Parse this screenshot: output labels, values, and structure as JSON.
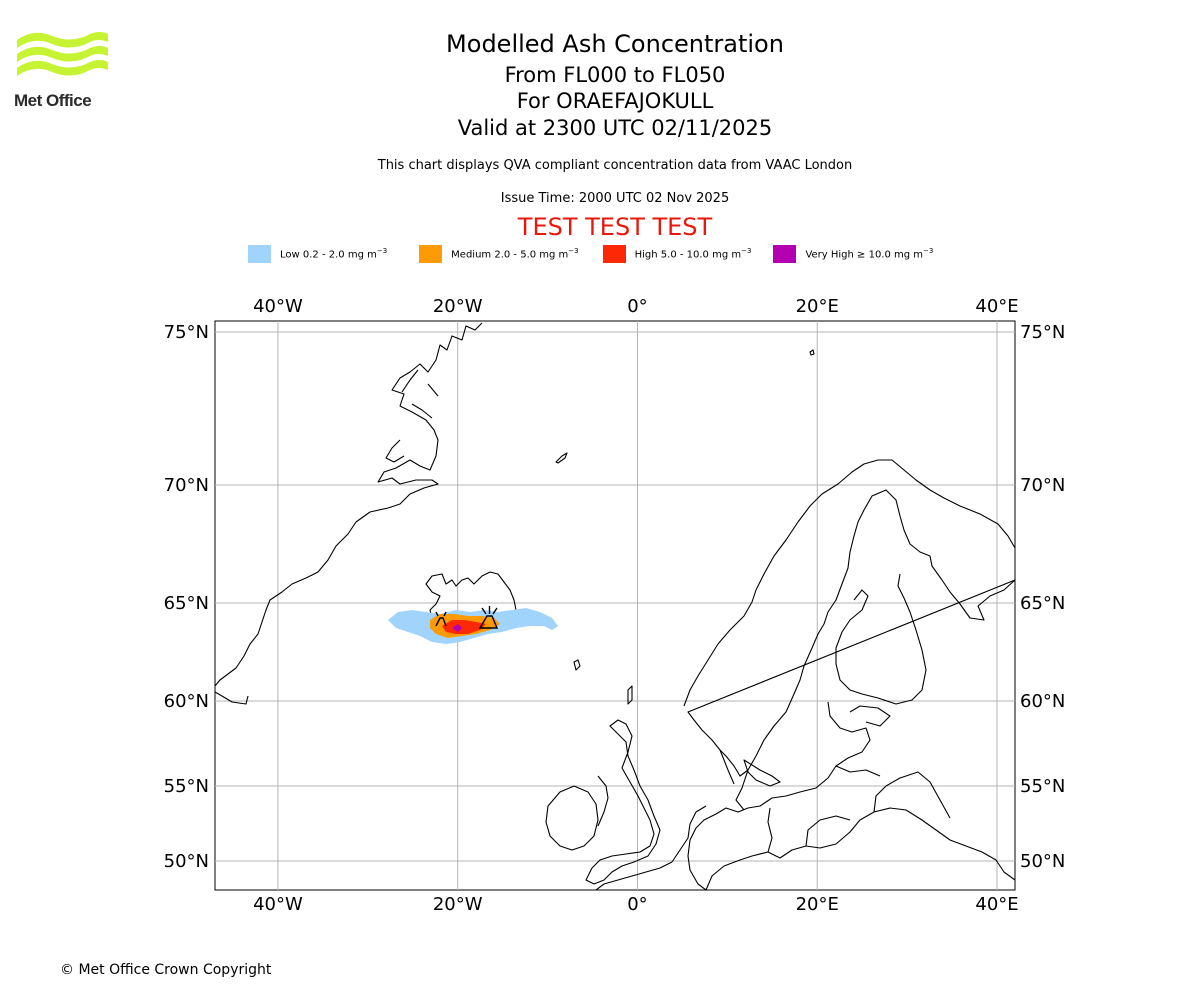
{
  "logo": {
    "text": "Met Office",
    "color": "#c6f432",
    "icon": "met-office-wave-logo"
  },
  "title": {
    "main": "Modelled Ash Concentration",
    "levels": "From FL000 to FL050",
    "volcano": "For ORAEFAJOKULL",
    "valid": "Valid at 2300 UTC 02/11/2025"
  },
  "subtitle": "This chart displays QVA compliant concentration data from VAAC London",
  "issue_time": "Issue Time: 2000 UTC 02 Nov 2025",
  "test_banner": "TEST TEST TEST",
  "legend": [
    {
      "label": "Low 0.2 - 2.0 mg m",
      "color": "#a0d4fc"
    },
    {
      "label": "Medium 2.0 - 5.0 mg m",
      "color": "#fd9a06"
    },
    {
      "label": "High 5.0 - 10.0 mg m",
      "color": "#fd2805"
    },
    {
      "label": "Very High ≥ 10.0 mg m",
      "color": "#b300b0"
    }
  ],
  "legend_unit_exp": "−3",
  "map": {
    "lon_ticks": [
      "40°W",
      "20°W",
      "0°",
      "20°E",
      "40°E"
    ],
    "lat_ticks": [
      "75°N",
      "70°N",
      "65°N",
      "60°N",
      "55°N",
      "50°N"
    ],
    "lon_range_deg": [
      -47,
      42
    ],
    "lat_range_deg": [
      49,
      75.5
    ],
    "volcano_marker_icon": "volcano-icon"
  },
  "copyright": "© Met Office Crown Copyright"
}
